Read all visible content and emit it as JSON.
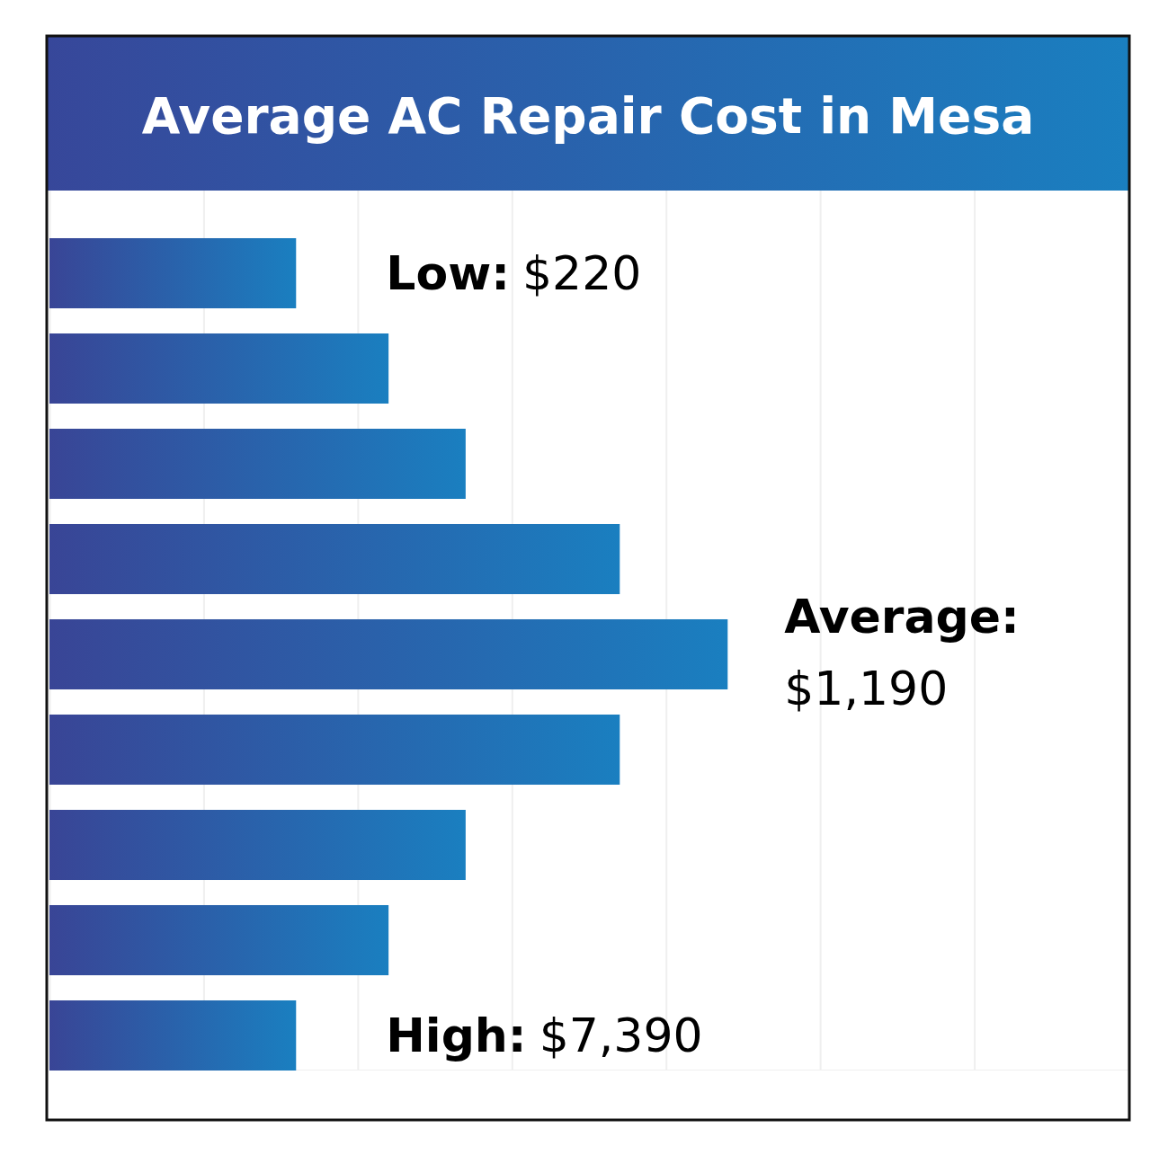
{
  "chart_data": {
    "type": "bar",
    "title": "Average AC Repair Cost in Mesa",
    "orientation": "horizontal",
    "categories": [
      null,
      null,
      null,
      null,
      null,
      null,
      null,
      null,
      null
    ],
    "values": [
      1.6,
      2.2,
      2.7,
      3.7,
      4.4,
      3.7,
      2.7,
      2.2,
      1.6
    ],
    "xlim": [
      0,
      7
    ],
    "xticks": [
      0,
      1,
      2,
      3,
      4,
      5,
      6,
      7
    ],
    "grid": true,
    "tick_labels": false,
    "color": "#1a7fc0",
    "annotations": [
      {
        "label": "Low:",
        "text": "$220"
      },
      {
        "label": "Average:",
        "text": "$1,190"
      },
      {
        "label": "High:",
        "text": "$7,390"
      }
    ]
  }
}
